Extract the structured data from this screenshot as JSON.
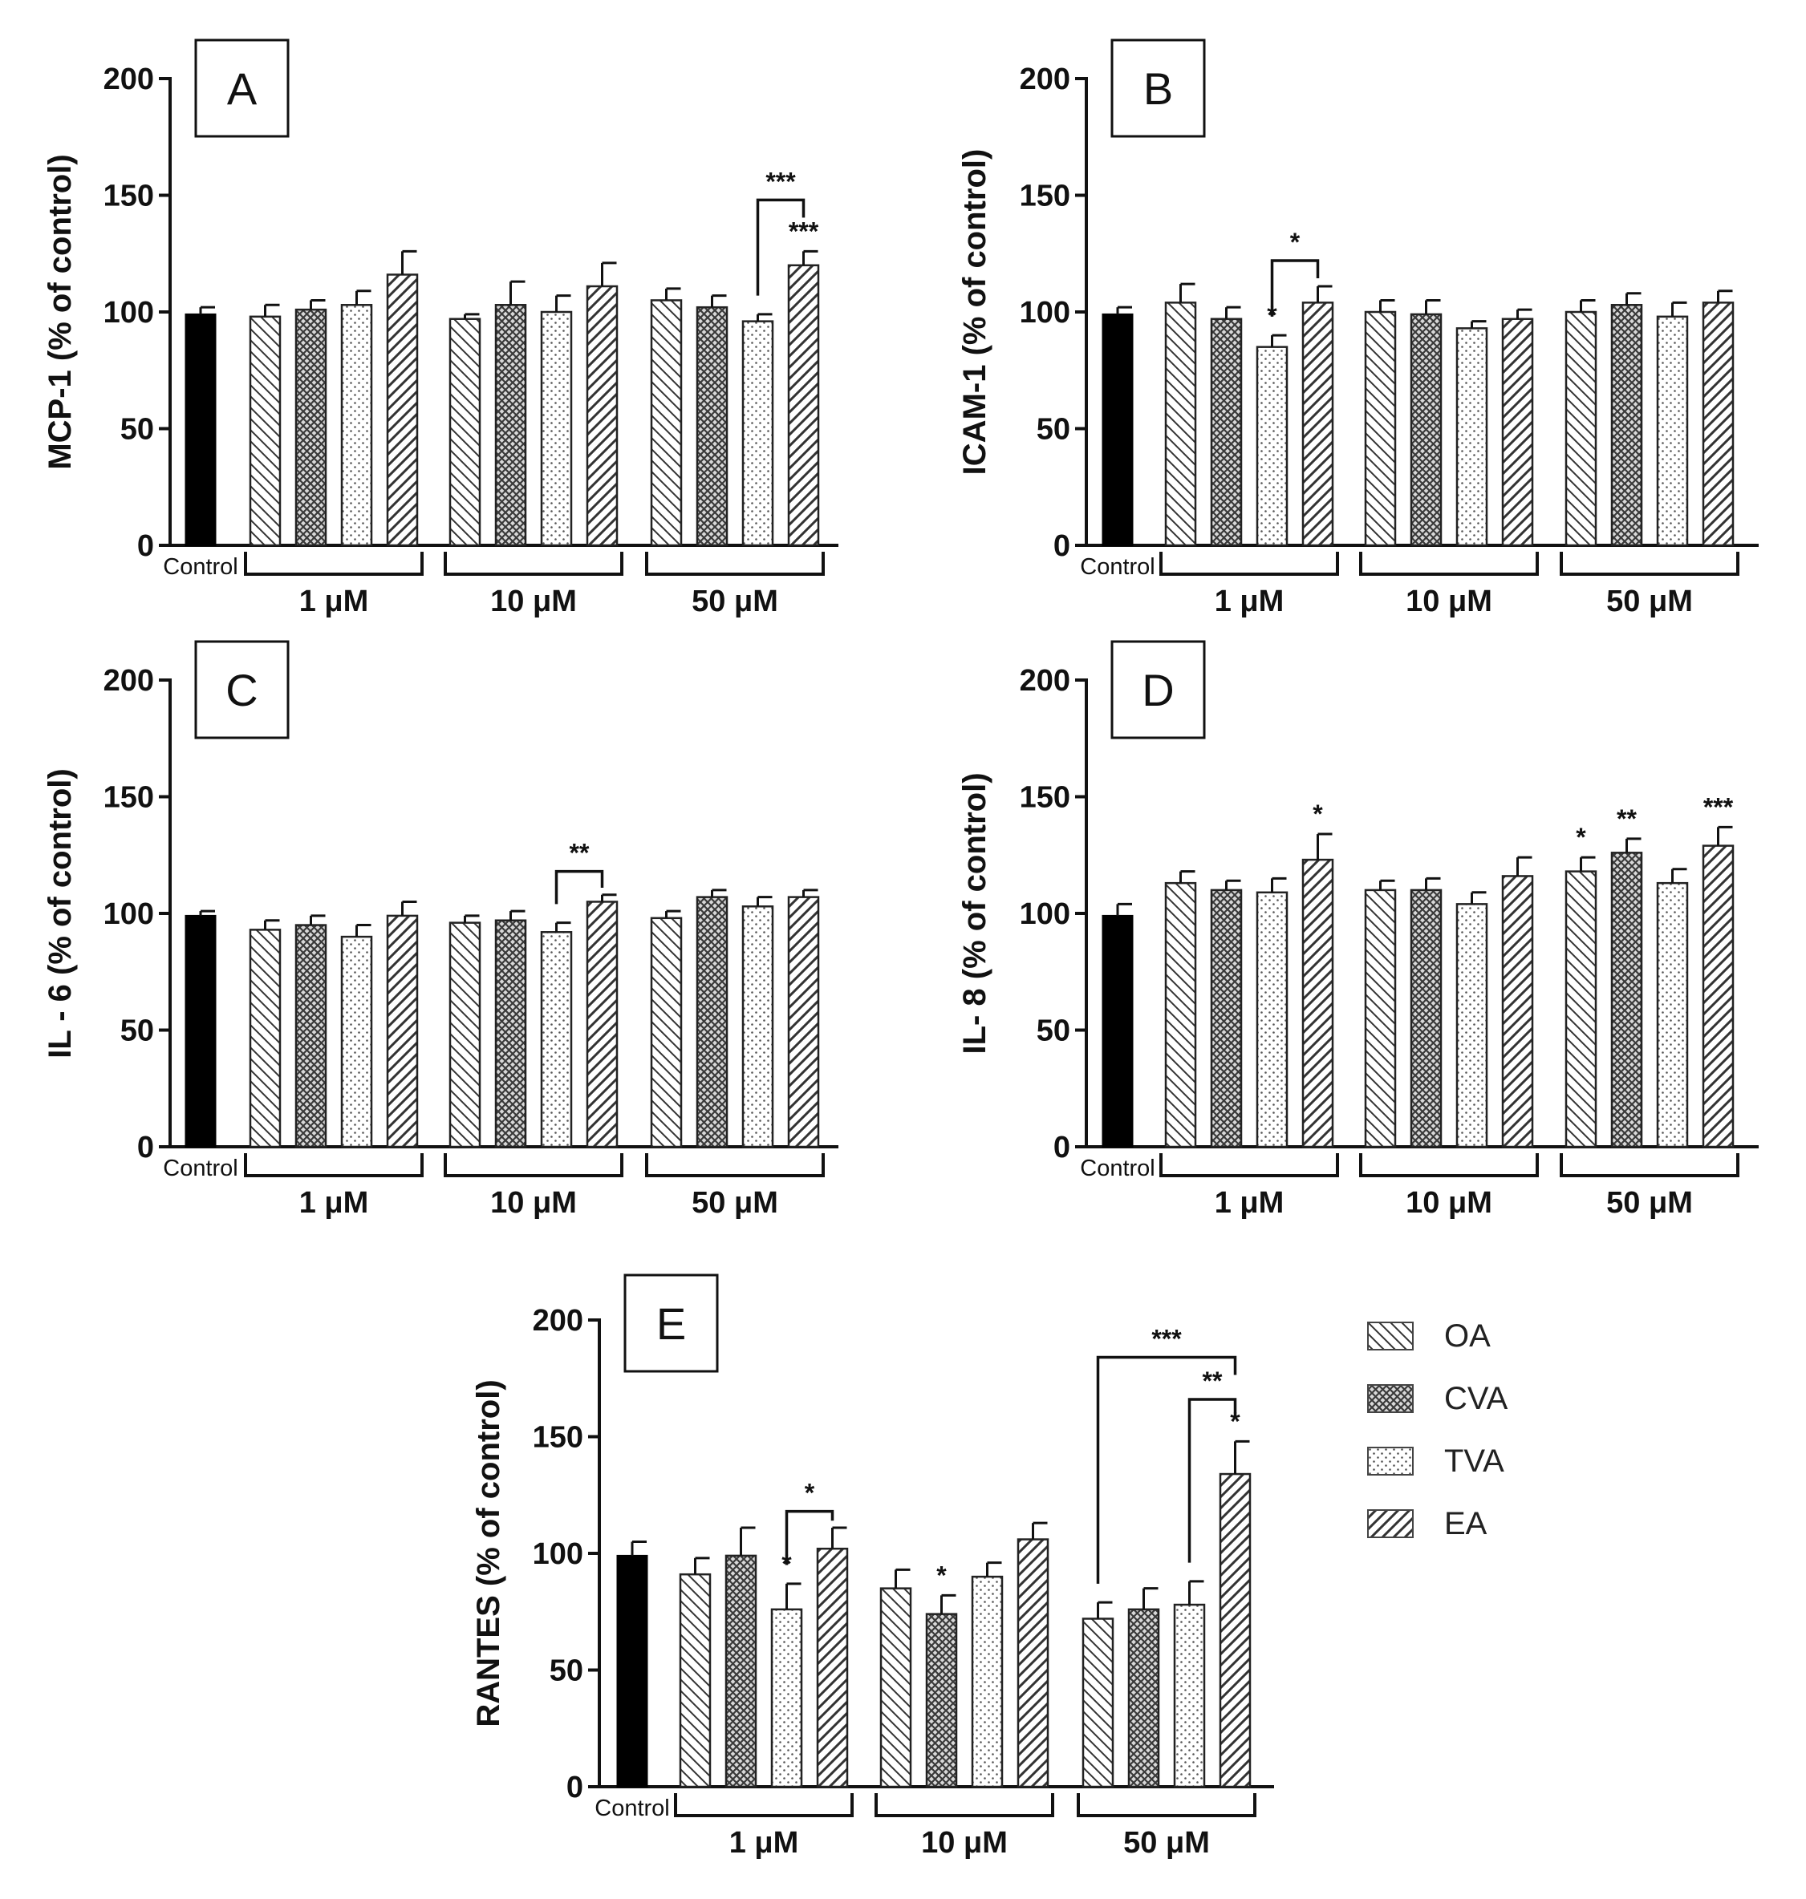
{
  "legend": [
    {
      "key": "OA",
      "label": "OA",
      "pattern": "hatch-back"
    },
    {
      "key": "CVA",
      "label": "CVA",
      "pattern": "crosshatch"
    },
    {
      "key": "TVA",
      "label": "TVA",
      "pattern": "dots"
    },
    {
      "key": "EA",
      "label": "EA",
      "pattern": "hatch-forward"
    }
  ],
  "chart_data": [
    {
      "type": "bar",
      "panel": "A",
      "ylabel": "MCP-1  (% of control)",
      "ylim": [
        0,
        200
      ],
      "yticks": [
        "0",
        "50",
        "100",
        "150",
        "200"
      ],
      "control_label": "Control",
      "groups": [
        "1 μM",
        "10 μM",
        "50 μM"
      ],
      "control": {
        "value": 99,
        "err": 3
      },
      "series": [
        {
          "name": "OA",
          "values": [
            98,
            97,
            105
          ],
          "err": [
            5,
            2,
            5
          ]
        },
        {
          "name": "CVA",
          "values": [
            101,
            103,
            102
          ],
          "err": [
            4,
            10,
            5
          ]
        },
        {
          "name": "TVA",
          "values": [
            103,
            100,
            96
          ],
          "err": [
            6,
            7,
            3
          ]
        },
        {
          "name": "EA",
          "values": [
            116,
            111,
            120
          ],
          "err": [
            10,
            10,
            6
          ]
        }
      ],
      "annotations": [
        {
          "type": "star",
          "group": 2,
          "series": 3,
          "text": "***"
        },
        {
          "type": "bracket",
          "group": 2,
          "from": 2,
          "to": 3,
          "level": 148,
          "text": "***"
        }
      ]
    },
    {
      "type": "bar",
      "panel": "B",
      "ylabel": "ICAM-1 (% of control)",
      "ylim": [
        0,
        200
      ],
      "yticks": [
        "0",
        "50",
        "100",
        "150",
        "200"
      ],
      "control_label": "Control",
      "groups": [
        "1 μM",
        "10 μM",
        "50 μM"
      ],
      "control": {
        "value": 99,
        "err": 3
      },
      "series": [
        {
          "name": "OA",
          "values": [
            104,
            100,
            100
          ],
          "err": [
            8,
            5,
            5
          ]
        },
        {
          "name": "CVA",
          "values": [
            97,
            99,
            103
          ],
          "err": [
            5,
            6,
            5
          ]
        },
        {
          "name": "TVA",
          "values": [
            85,
            93,
            98
          ],
          "err": [
            5,
            3,
            6
          ]
        },
        {
          "name": "EA",
          "values": [
            104,
            97,
            104
          ],
          "err": [
            7,
            4,
            5
          ]
        }
      ],
      "annotations": [
        {
          "type": "star",
          "group": 0,
          "series": 2,
          "text": "*"
        },
        {
          "type": "bracket",
          "group": 0,
          "from": 2,
          "to": 3,
          "level": 122,
          "text": "*"
        }
      ]
    },
    {
      "type": "bar",
      "panel": "C",
      "ylabel": "IL - 6 (% of control)",
      "ylim": [
        0,
        200
      ],
      "yticks": [
        "0",
        "50",
        "100",
        "150",
        "200"
      ],
      "control_label": "Control",
      "groups": [
        "1 μM",
        "10 μM",
        "50 μM"
      ],
      "control": {
        "value": 99,
        "err": 2
      },
      "series": [
        {
          "name": "OA",
          "values": [
            93,
            96,
            98
          ],
          "err": [
            4,
            3,
            3
          ]
        },
        {
          "name": "CVA",
          "values": [
            95,
            97,
            107
          ],
          "err": [
            4,
            4,
            3
          ]
        },
        {
          "name": "TVA",
          "values": [
            90,
            92,
            103
          ],
          "err": [
            5,
            4,
            4
          ]
        },
        {
          "name": "EA",
          "values": [
            99,
            105,
            107
          ],
          "err": [
            6,
            3,
            3
          ]
        }
      ],
      "annotations": [
        {
          "type": "bracket",
          "group": 1,
          "from": 2,
          "to": 3,
          "level": 118,
          "text": "**"
        }
      ]
    },
    {
      "type": "bar",
      "panel": "D",
      "ylabel": "IL- 8 (% of control)",
      "ylim": [
        0,
        200
      ],
      "yticks": [
        "0",
        "50",
        "100",
        "150",
        "200"
      ],
      "control_label": "Control",
      "groups": [
        "1 μM",
        "10 μM",
        "50 μM"
      ],
      "control": {
        "value": 99,
        "err": 5
      },
      "series": [
        {
          "name": "OA",
          "values": [
            113,
            110,
            118
          ],
          "err": [
            5,
            4,
            6
          ]
        },
        {
          "name": "CVA",
          "values": [
            110,
            110,
            126
          ],
          "err": [
            4,
            5,
            6
          ]
        },
        {
          "name": "TVA",
          "values": [
            109,
            104,
            113
          ],
          "err": [
            6,
            5,
            6
          ]
        },
        {
          "name": "EA",
          "values": [
            123,
            116,
            129
          ],
          "err": [
            11,
            8,
            8
          ]
        }
      ],
      "annotations": [
        {
          "type": "star",
          "group": 0,
          "series": 3,
          "text": "*"
        },
        {
          "type": "star",
          "group": 2,
          "series": 0,
          "text": "*"
        },
        {
          "type": "star",
          "group": 2,
          "series": 1,
          "text": "**"
        },
        {
          "type": "star",
          "group": 2,
          "series": 3,
          "text": "***"
        }
      ]
    },
    {
      "type": "bar",
      "panel": "E",
      "ylabel": "RANTES (% of control)",
      "ylim": [
        0,
        200
      ],
      "yticks": [
        "0",
        "50",
        "100",
        "150",
        "200"
      ],
      "control_label": "Control",
      "groups": [
        "1 μM",
        "10 μM",
        "50 μM"
      ],
      "control": {
        "value": 99,
        "err": 6
      },
      "series": [
        {
          "name": "OA",
          "values": [
            91,
            85,
            72
          ],
          "err": [
            7,
            8,
            7
          ]
        },
        {
          "name": "CVA",
          "values": [
            99,
            74,
            76
          ],
          "err": [
            12,
            8,
            9
          ]
        },
        {
          "name": "TVA",
          "values": [
            76,
            90,
            78
          ],
          "err": [
            11,
            6,
            10
          ]
        },
        {
          "name": "EA",
          "values": [
            102,
            106,
            134
          ],
          "err": [
            9,
            7,
            14
          ]
        }
      ],
      "annotations": [
        {
          "type": "star",
          "group": 0,
          "series": 2,
          "text": "*"
        },
        {
          "type": "star",
          "group": 1,
          "series": 1,
          "text": "*"
        },
        {
          "type": "star",
          "group": 2,
          "series": 3,
          "text": "*"
        },
        {
          "type": "bracket",
          "group": 0,
          "from": 2,
          "to": 3,
          "level": 118,
          "text": "*"
        },
        {
          "type": "bracket",
          "group": 2,
          "from": 2,
          "to": 3,
          "level": 166,
          "text": "**"
        },
        {
          "type": "bracket",
          "group": 2,
          "from": 0,
          "to": 3,
          "level": 184,
          "text": "***"
        }
      ]
    }
  ]
}
